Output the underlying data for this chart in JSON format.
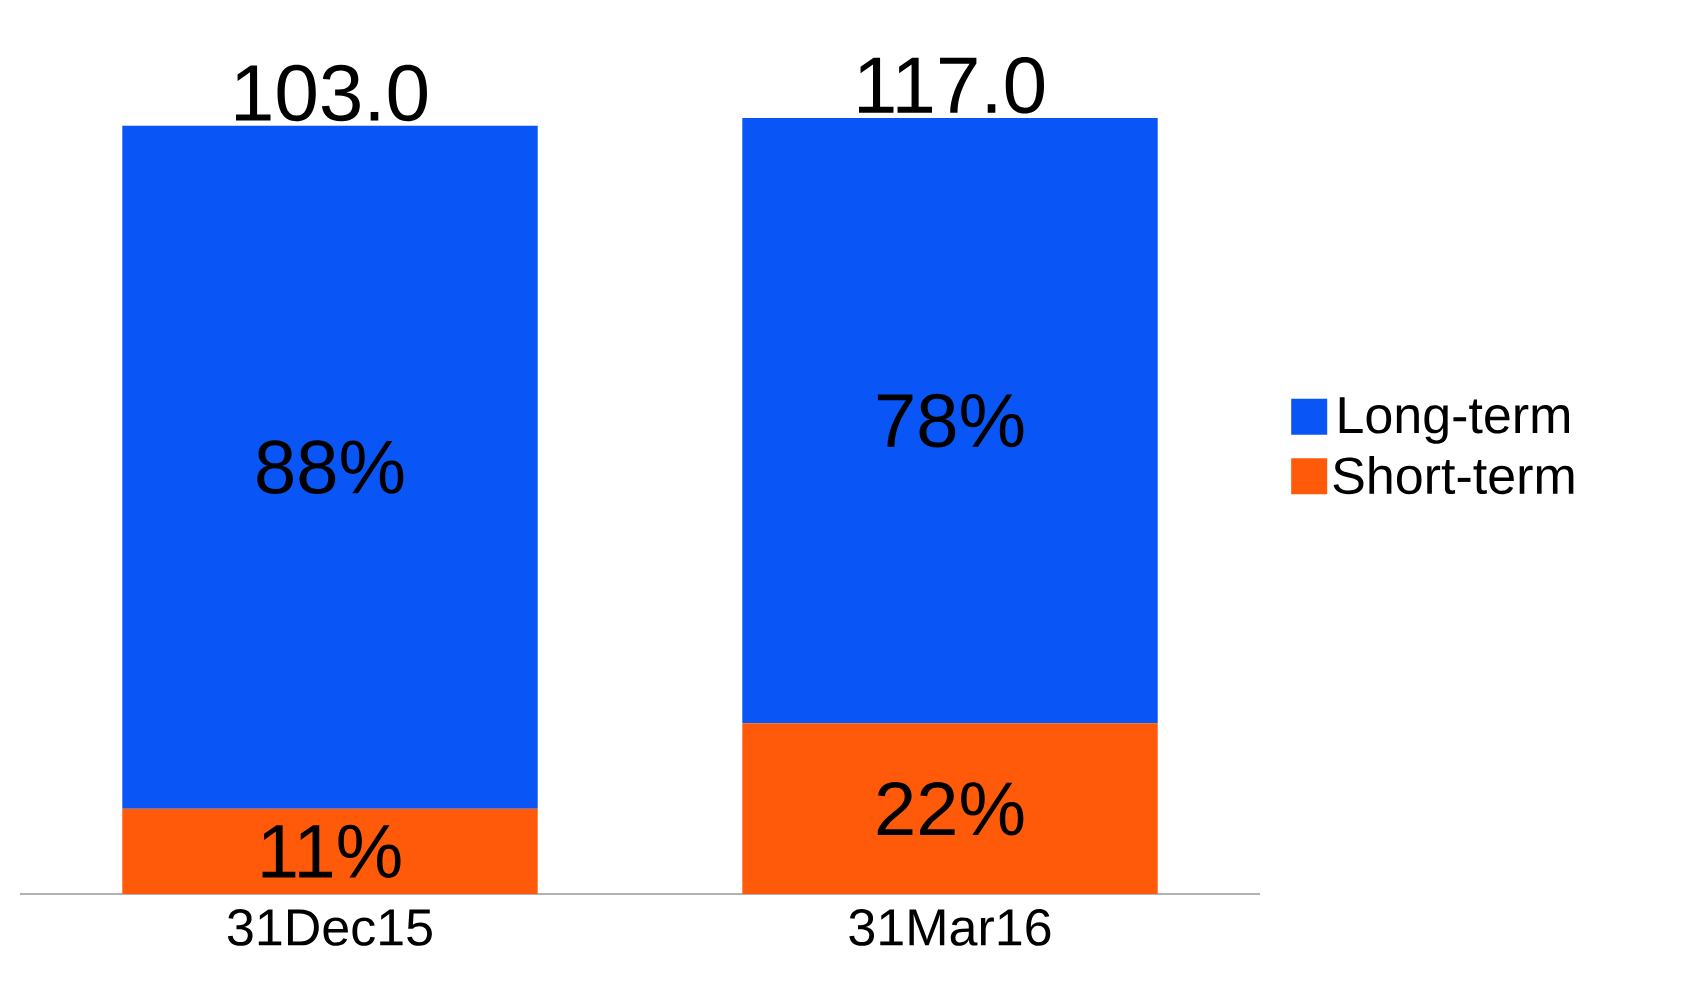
{
  "chart_data": {
    "type": "bar",
    "stacked": true,
    "legend": "right",
    "categories": [
      "31Dec15",
      "31Mar16"
    ],
    "series": [
      {
        "name": "Short-term",
        "color": "#ff5a0a",
        "values": [
          11,
          22
        ],
        "value_labels": [
          "11%",
          "22%"
        ]
      },
      {
        "name": "Long-term",
        "color": "#0a55f5",
        "values": [
          88,
          78
        ],
        "value_labels": [
          "88%",
          "78%"
        ]
      }
    ],
    "annotations": [
      {
        "text": "103.0",
        "x": "31Dec15",
        "y": 99
      },
      {
        "text": "117.0",
        "x": "31Mar16",
        "y": 100
      }
    ]
  }
}
